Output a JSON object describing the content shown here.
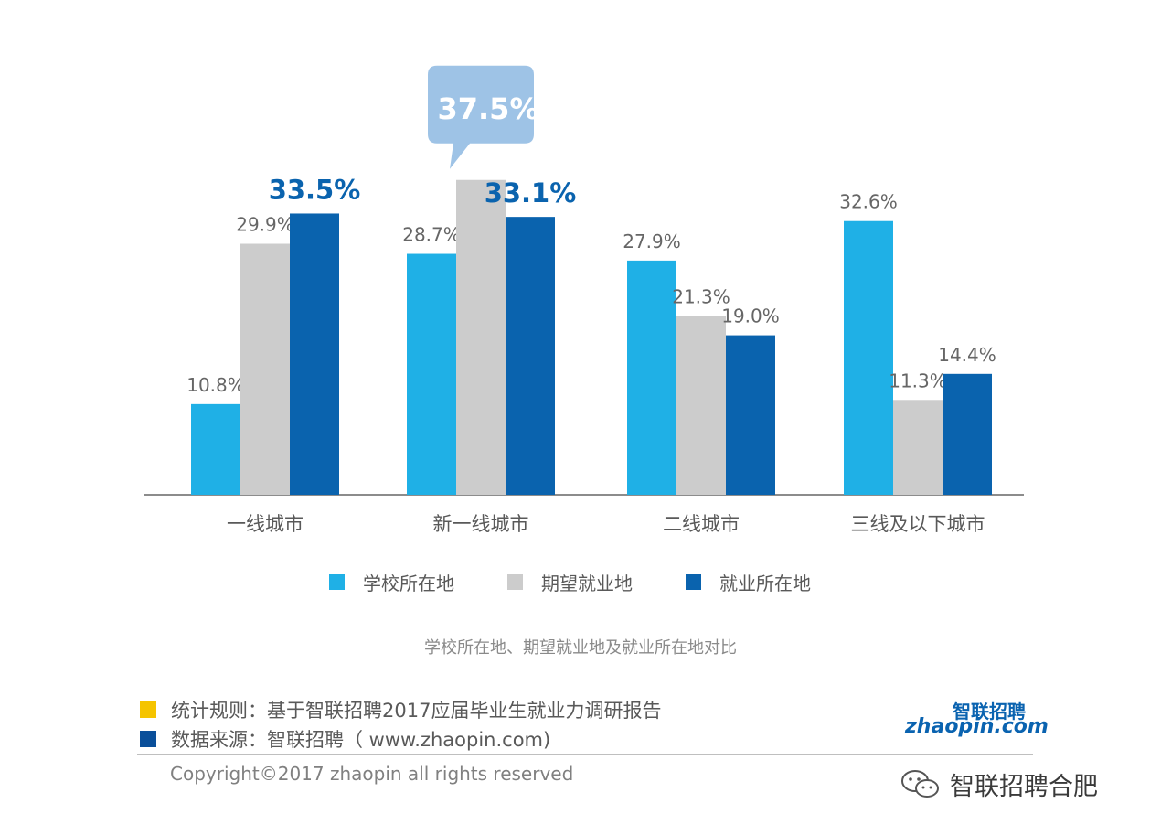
{
  "chart_data": {
    "type": "bar",
    "categories": [
      "一线城市",
      "新一线城市",
      "二线城市",
      "三线及以下城市"
    ],
    "series": [
      {
        "name": "学校所在地",
        "color": "#1fb0e6",
        "values": [
          10.8,
          28.7,
          27.9,
          32.6
        ],
        "labels": [
          "10.8%",
          "28.7%",
          "27.9%",
          "32.6%"
        ]
      },
      {
        "name": "期望就业地",
        "color": "#cccccc",
        "values": [
          29.9,
          37.5,
          21.3,
          11.3
        ],
        "labels": [
          "29.9%",
          "37.5%",
          "21.3%",
          "11.3%"
        ]
      },
      {
        "name": "就业所在地",
        "color": "#0a63ae",
        "values": [
          33.5,
          33.1,
          19.0,
          14.4
        ],
        "labels": [
          "33.5%",
          "33.1%",
          "19.0%",
          "14.4%"
        ]
      }
    ],
    "highlight_labels": {
      "bubble": "37.5%",
      "bold_blue": [
        "33.5%",
        "33.1%"
      ]
    },
    "bubble_color": "#9ec3e6",
    "ylim": [
      0,
      40
    ],
    "grid": false,
    "legend_position": "bottom"
  },
  "caption": "学校所在地、期望就业地及就业所在地对比",
  "notes": [
    {
      "color": "#f5c400",
      "text": "统计规则：基于智联招聘2017应届毕业生就业力调研报告"
    },
    {
      "color": "#0a4f9a",
      "text": "数据来源：智联招聘（ www.zhaopin.com)"
    }
  ],
  "copyright": "Copyright©2017 zhaopin all rights reserved",
  "logo": {
    "cn": "智联招聘",
    "en": "zhaopin.com"
  },
  "watermark": {
    "icon": "wechat-icon",
    "text": "智联招聘合肥"
  }
}
